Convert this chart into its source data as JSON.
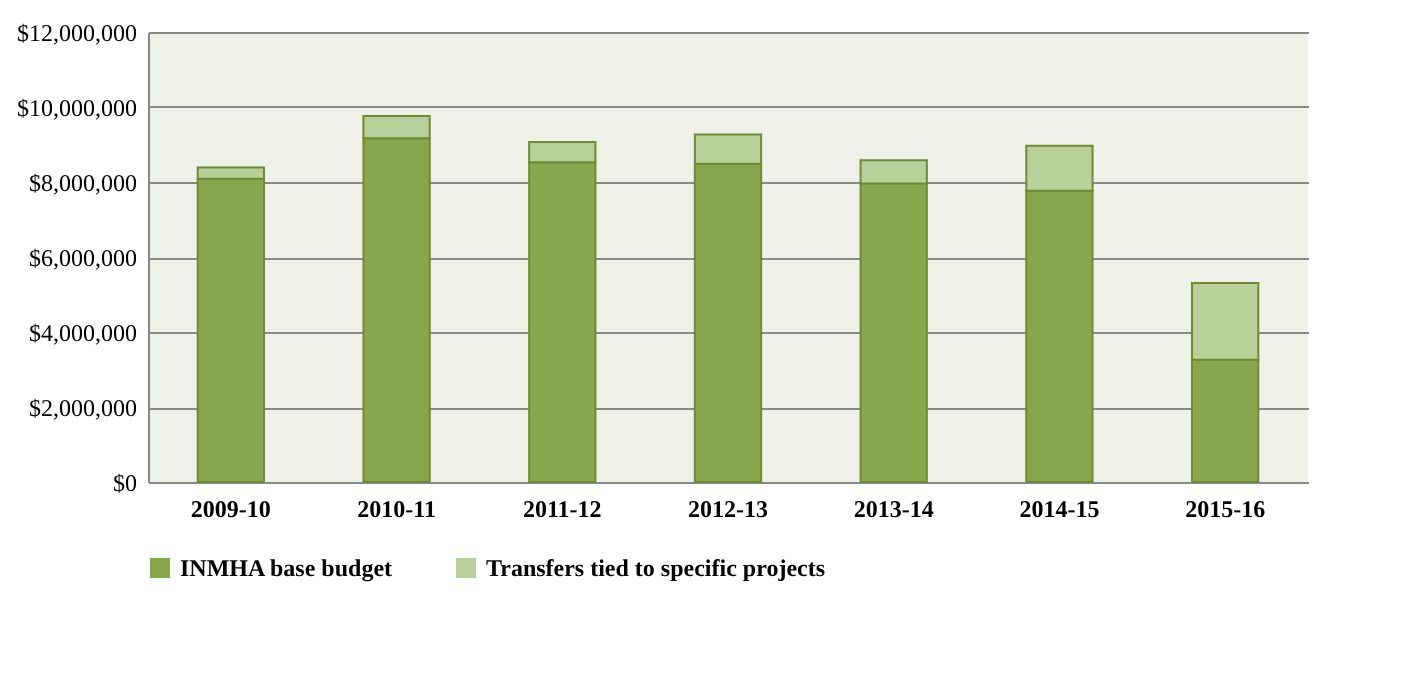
{
  "chart_data": {
    "type": "bar",
    "stacked": true,
    "categories": [
      "2009-10",
      "2010-11",
      "2011-12",
      "2012-13",
      "2013-14",
      "2014-15",
      "2015-16"
    ],
    "series": [
      {
        "name": "INMHA base budget",
        "color": "#8aa64c",
        "values": [
          8090000,
          9170000,
          8530000,
          8490000,
          7960000,
          7770000,
          3260000
        ]
      },
      {
        "name": "Transfers tied to specific projects",
        "color": "#b9d09a",
        "values": [
          300000,
          590000,
          540000,
          780000,
          620000,
          1200000,
          2050000
        ]
      }
    ],
    "ylim": [
      0,
      12000000
    ],
    "yticks": [
      {
        "value": 0,
        "label": "$0"
      },
      {
        "value": 2000000,
        "label": "$2,000,000"
      },
      {
        "value": 4000000,
        "label": "$4,000,000"
      },
      {
        "value": 6000000,
        "label": "$6,000,000"
      },
      {
        "value": 8000000,
        "label": "$8,000,000"
      },
      {
        "value": 10000000,
        "label": "$10,000,000"
      },
      {
        "value": 12000000,
        "label": "$12,000,000"
      }
    ],
    "grid": "y",
    "legend": "bottom"
  }
}
